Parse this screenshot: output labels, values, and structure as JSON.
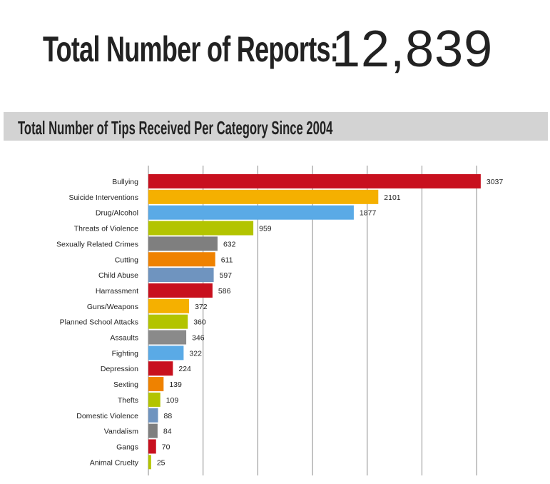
{
  "headline": {
    "label": "Total Number of Reports:",
    "value": "12,839"
  },
  "chart_data": {
    "type": "bar",
    "orientation": "horizontal",
    "title": "Total Number of Tips Received Per Category Since 2004",
    "xlim": [
      0,
      3000
    ],
    "grid": true,
    "grid_step": 500,
    "categories": [
      "Bullying",
      "Suicide Interventions",
      "Drug/Alcohol",
      "Threats of Violence",
      "Sexually Related Crimes",
      "Cutting",
      "Child Abuse",
      "Harrassment",
      "Guns/Weapons",
      "Planned School Attacks",
      "Assaults",
      "Fighting",
      "Depression",
      "Sexting",
      "Thefts",
      "Domestic Violence",
      "Vandalism",
      "Gangs",
      "Animal Cruelty"
    ],
    "values": [
      3037,
      2101,
      1877,
      959,
      632,
      611,
      597,
      586,
      372,
      360,
      346,
      322,
      224,
      139,
      109,
      88,
      84,
      70,
      25
    ],
    "colors": [
      "#c8101e",
      "#f5b000",
      "#5aaae6",
      "#b3c400",
      "#7f7f7f",
      "#ef8200",
      "#6f94bf",
      "#c8101e",
      "#f5b000",
      "#b3c400",
      "#8a8a8a",
      "#5aaae6",
      "#c8101e",
      "#ef8200",
      "#b3c400",
      "#6f94bf",
      "#7f7f7f",
      "#c8101e",
      "#b3c400"
    ]
  }
}
